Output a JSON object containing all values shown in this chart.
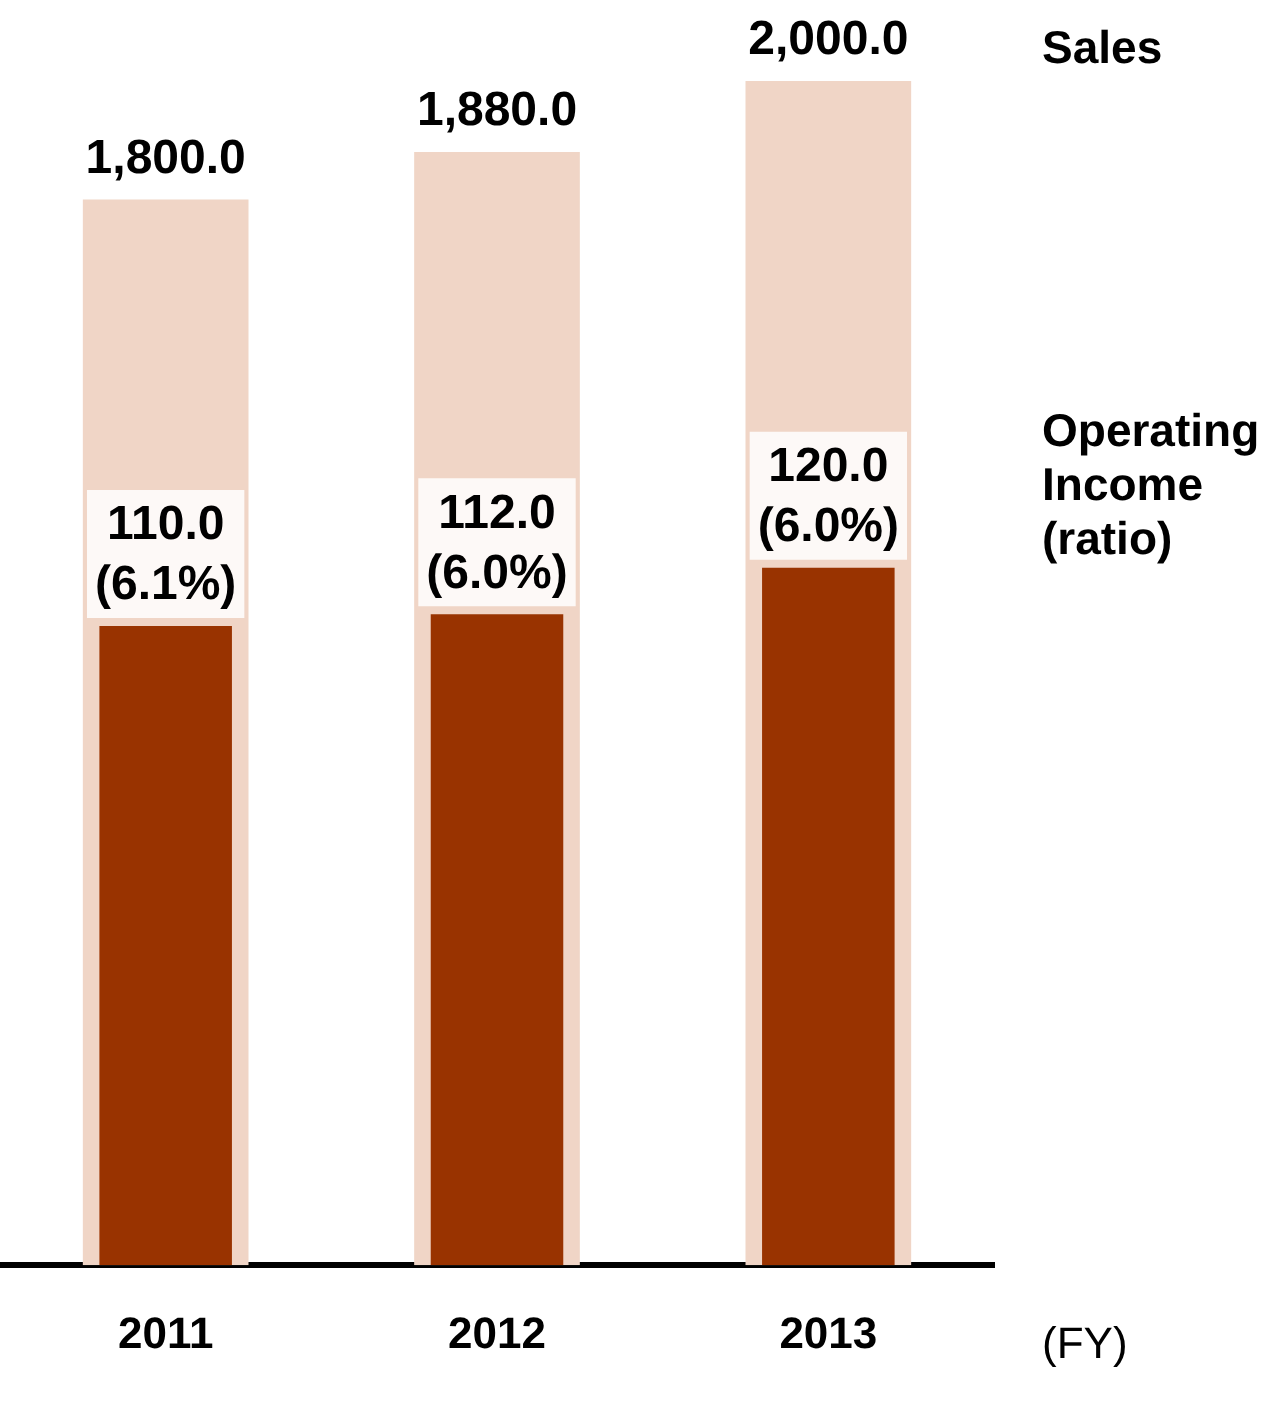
{
  "chart_data": {
    "type": "bar",
    "xlabel": "(FY)",
    "categories": [
      "2011",
      "2012",
      "2013"
    ],
    "legend": false,
    "series": [
      {
        "name": "Sales",
        "color": "#f0d5c6",
        "values": [
          1800,
          1880,
          2000
        ],
        "value_labels": [
          "1,800.0",
          "1,880.0",
          "2,000.0"
        ]
      },
      {
        "name": "Operating Income (ratio)",
        "color": "#993300",
        "axis": "y2",
        "values": [
          110,
          112,
          120
        ],
        "value_labels": [
          "110.0\n(6.1%)",
          "112.0\n(6.0%)",
          "120.0\n(6.0%)"
        ]
      }
    ]
  }
}
